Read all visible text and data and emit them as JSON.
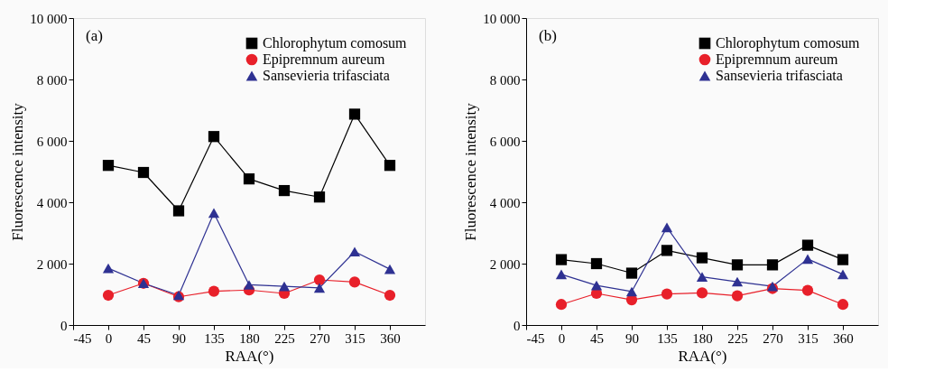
{
  "chart_data": [
    {
      "type": "line",
      "annotations": [
        "(a)"
      ],
      "xlabel": "RAA(°)",
      "ylabel": "Fluorescence intensity",
      "x": [
        0,
        45,
        90,
        135,
        180,
        225,
        270,
        315,
        360
      ],
      "xlim": [
        -45,
        405
      ],
      "xticks": [
        -45,
        0,
        45,
        90,
        135,
        180,
        225,
        270,
        315,
        360
      ],
      "ylim": [
        0,
        10000
      ],
      "yticks": [
        0,
        {
          "value": 2000,
          "label": "2 000"
        },
        {
          "value": 4000,
          "label": "4 000"
        },
        {
          "value": 6000,
          "label": "6 000"
        },
        {
          "value": 8000,
          "label": "8 000"
        },
        {
          "value": 10000,
          "label": "10 000"
        }
      ],
      "grid": false,
      "legend": "top right",
      "series": [
        {
          "name": "Chlorophytum comosum",
          "color": "#000000",
          "marker": "square",
          "values": [
            5200,
            4970,
            3720,
            6140,
            4760,
            4380,
            4170,
            6870,
            5200
          ]
        },
        {
          "name": "Epipremnum aureum",
          "color": "#e8202a",
          "marker": "circle",
          "values": [
            970,
            1360,
            920,
            1100,
            1140,
            1030,
            1470,
            1400,
            970
          ]
        },
        {
          "name": "Sansevieria trifasciata",
          "color": "#2e3192",
          "marker": "triangle",
          "values": [
            1850,
            1360,
            970,
            3650,
            1310,
            1260,
            1210,
            2390,
            1820
          ]
        }
      ]
    },
    {
      "type": "line",
      "annotations": [
        "(b)"
      ],
      "xlabel": "RAA(°)",
      "ylabel": "Fluorescence intensity",
      "x": [
        0,
        45,
        90,
        135,
        180,
        225,
        270,
        315,
        360
      ],
      "xlim": [
        -45,
        405
      ],
      "xticks": [
        -45,
        0,
        45,
        90,
        135,
        180,
        225,
        270,
        315,
        360
      ],
      "ylim": [
        0,
        10000
      ],
      "yticks": [
        0,
        {
          "value": 2000,
          "label": "2 000"
        },
        {
          "value": 4000,
          "label": "4 000"
        },
        {
          "value": 6000,
          "label": "6 000"
        },
        {
          "value": 8000,
          "label": "8 000"
        },
        {
          "value": 10000,
          "label": "10 000"
        }
      ],
      "grid": false,
      "legend": "top right",
      "series": [
        {
          "name": "Chlorophytum comosum",
          "color": "#000000",
          "marker": "square",
          "values": [
            2130,
            2000,
            1690,
            2430,
            2190,
            1960,
            1960,
            2600,
            2130
          ]
        },
        {
          "name": "Epipremnum aureum",
          "color": "#e8202a",
          "marker": "circle",
          "values": [
            670,
            1030,
            820,
            1010,
            1050,
            950,
            1190,
            1130,
            670
          ]
        },
        {
          "name": "Sansevieria trifasciata",
          "color": "#2e3192",
          "marker": "triangle",
          "values": [
            1650,
            1290,
            1090,
            3180,
            1570,
            1410,
            1260,
            2150,
            1650
          ]
        }
      ]
    }
  ]
}
